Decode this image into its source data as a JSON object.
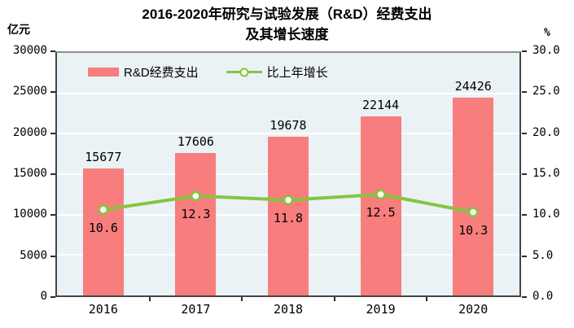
{
  "chart": {
    "title_line1": "2016-2020年研究与试验发展（R&D）经费支出",
    "title_line2": "及其增长速度",
    "left_unit": "亿元",
    "right_unit": "%"
  },
  "chart_data": {
    "type": "bar",
    "subtype": "bar-and-line-combo",
    "title": "2016-2020年研究与试验发展（R&D）经费支出及其增长速度",
    "categories": [
      "2016",
      "2017",
      "2018",
      "2019",
      "2020"
    ],
    "series": [
      {
        "name": "R&D经费支出",
        "type": "bar",
        "axis": "left",
        "color": "#f87d7d",
        "values": [
          15677,
          17606,
          19678,
          22144,
          24426
        ],
        "labels": [
          "15677",
          "17606",
          "19678",
          "22144",
          "24426"
        ]
      },
      {
        "name": "比上年增长",
        "type": "line",
        "axis": "right",
        "color": "#84c540",
        "marker": "open-circle",
        "values": [
          10.6,
          12.3,
          11.8,
          12.5,
          10.3
        ],
        "labels": [
          "10.6",
          "12.3",
          "11.8",
          "12.5",
          "10.3"
        ]
      }
    ],
    "left_axis": {
      "unit": "亿元",
      "min": 0,
      "max": 30000,
      "ticks": [
        "0",
        "5000",
        "10000",
        "15000",
        "20000",
        "25000",
        "30000"
      ]
    },
    "right_axis": {
      "unit": "%",
      "min": 0,
      "max": 30,
      "ticks": [
        "0.0",
        "5.0",
        "10.0",
        "15.0",
        "20.0",
        "25.0",
        "30.0"
      ]
    },
    "grid": true,
    "grid_color": "#ffffff",
    "plot_bg": "#eaf2f6",
    "legend_position": "top-left-inside"
  }
}
